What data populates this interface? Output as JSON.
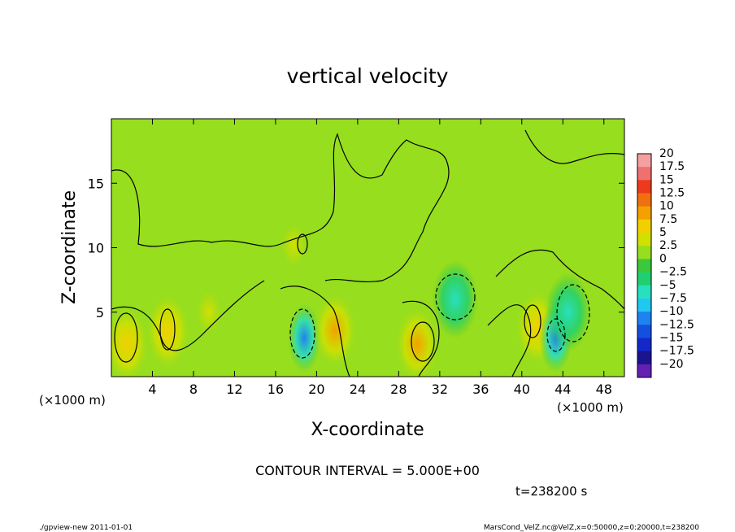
{
  "chart_data": {
    "type": "heatmap",
    "title": "vertical velocity",
    "xlabel": "X-coordinate",
    "ylabel": "Z-coordinate",
    "x_unit_label": "(×1000 m)",
    "y_unit_label": "(×1000 m)",
    "xlim": [
      0,
      50
    ],
    "ylim": [
      0,
      20
    ],
    "x_ticks": [
      4,
      8,
      12,
      16,
      20,
      24,
      28,
      32,
      36,
      40,
      44,
      48
    ],
    "y_ticks": [
      5,
      10,
      15
    ],
    "contour_interval_text": "CONTOUR INTERVAL = 5.000E+00",
    "time_text": "t=238200 s",
    "colorbar": {
      "labels": [
        "20",
        "17.5",
        "15",
        "12.5",
        "10",
        "7.5",
        "5",
        "2.5",
        "0",
        "−2.5",
        "−5",
        "−7.5",
        "−10",
        "−12.5",
        "−15",
        "−17.5",
        "−20"
      ],
      "colors": [
        "#f4a0a0",
        "#f07070",
        "#ee3a1c",
        "#f07010",
        "#f4a000",
        "#f2d000",
        "#d2e000",
        "#96de1e",
        "#3cc83c",
        "#20d070",
        "#28e0c0",
        "#20c8f0",
        "#1e82f0",
        "#1450e0",
        "#1428c8",
        "#1a1490",
        "#6420b4"
      ]
    },
    "background_value": 1,
    "features": [
      {
        "x": 1.5,
        "z": 2.5,
        "value": 6
      },
      {
        "x": 5.5,
        "z": 3.5,
        "value": 6
      },
      {
        "x": 9.5,
        "z": 5.0,
        "value": 4
      },
      {
        "x": 18.8,
        "z": 3.0,
        "value": -12
      },
      {
        "x": 21.8,
        "z": 3.6,
        "value": 8
      },
      {
        "x": 29.8,
        "z": 2.5,
        "value": 8
      },
      {
        "x": 33.5,
        "z": 6.0,
        "value": -5
      },
      {
        "x": 41.5,
        "z": 3.8,
        "value": 6
      },
      {
        "x": 43.3,
        "z": 3.0,
        "value": -12
      },
      {
        "x": 44.5,
        "z": 5.0,
        "value": -5
      },
      {
        "x": 17.8,
        "z": 10.2,
        "value": 4
      }
    ]
  },
  "footer": {
    "left": "./gpview-new   2011-01-01",
    "right": "MarsCond_VelZ.nc@VelZ,x=0:50000,z=0:20000,t=238200"
  }
}
